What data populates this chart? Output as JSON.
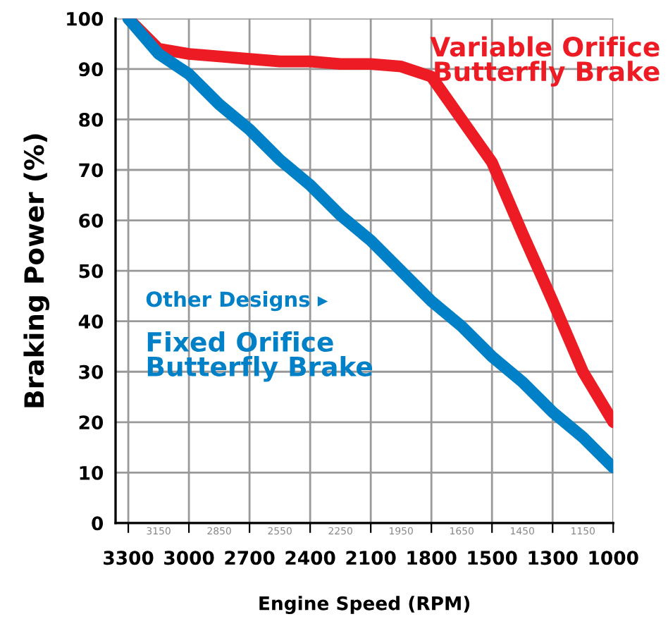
{
  "chart_data": {
    "type": "line",
    "categories": [
      "3300",
      "3150",
      "3000",
      "2850",
      "2700",
      "2550",
      "2400",
      "2250",
      "2100",
      "1950",
      "1800",
      "1650",
      "1500",
      "1450",
      "1300",
      "1150",
      "1000"
    ],
    "series": [
      {
        "color": "#ed1c24",
        "values": [
          100,
          94,
          93,
          92.5,
          92,
          91.5,
          91.5,
          91,
          91,
          90.5,
          88.5,
          80,
          71.5,
          57.5,
          44,
          30,
          20
        ]
      },
      {
        "name": "Other Designs ▸",
        "color": "#0080c6",
        "values": [
          100,
          93,
          89,
          83,
          78,
          72,
          67,
          61,
          56,
          50,
          44,
          39,
          33,
          28,
          22,
          17,
          11
        ]
      }
    ],
    "annotations": [
      "Variable Orifice\nButterfly Brake",
      "Fixed Orifice\nButterfly Brake"
    ],
    "xlabel": "Engine Speed (RPM)",
    "ylabel": "Braking Power (%)",
    "ylim": [
      0,
      100
    ],
    "yticks": [
      0,
      10,
      20,
      30,
      40,
      50,
      60,
      70,
      80,
      90,
      100
    ],
    "grid": true,
    "legend": false,
    "marker": "none",
    "line_style": "solid"
  }
}
